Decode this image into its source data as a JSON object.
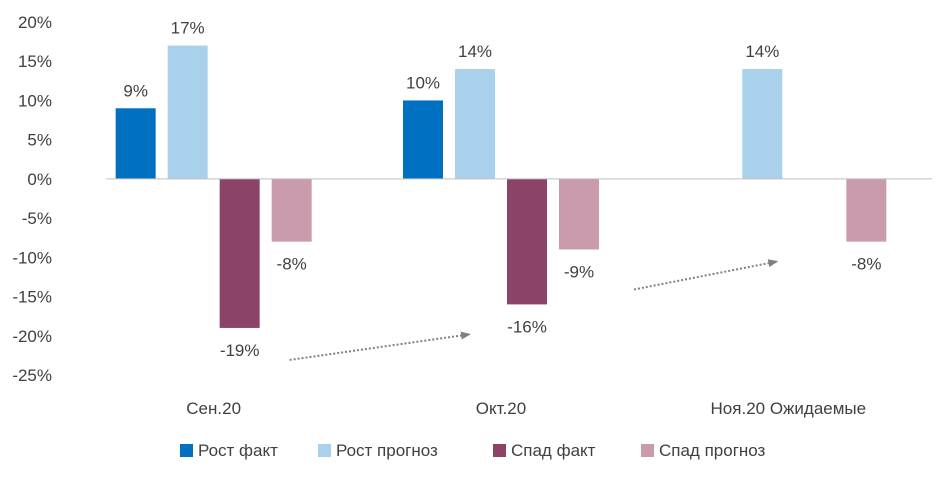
{
  "chart_data": {
    "type": "bar",
    "categories": [
      "Сен.20",
      "Окт.20",
      "Ноя.20 Ожидаемые"
    ],
    "series": [
      {
        "name": "Рост факт",
        "color": "#0070C0",
        "values": [
          9,
          10,
          null
        ],
        "labels": [
          "9%",
          "10%",
          ""
        ]
      },
      {
        "name": "Рост прогноз",
        "color": "#A9D1EC",
        "values": [
          17,
          14,
          14
        ],
        "labels": [
          "17%",
          "14%",
          "14%"
        ]
      },
      {
        "name": "Спад факт",
        "color": "#8B4368",
        "values": [
          -19,
          -16,
          null
        ],
        "labels": [
          "-19%",
          "-16%",
          ""
        ]
      },
      {
        "name": "Спад прогноз",
        "color": "#C99BAC",
        "values": [
          -8,
          -9,
          -8
        ],
        "labels": [
          "-8%",
          "-9%",
          "-8%"
        ]
      }
    ],
    "ylim": [
      -25,
      20
    ],
    "yticks": [
      "20%",
      "15%",
      "10%",
      "5%",
      "0%",
      "-5%",
      "-10%",
      "-15%",
      "-20%",
      "-25%"
    ],
    "legend_position": "bottom",
    "grid": false,
    "annotations": [
      "dotted trend arrow from Сен.20 «Спад факт» to Окт.20 «Спад факт»",
      "dotted trend arrow from Окт.20 «Спад прогноз» to Ноя.20 «Спад прогноз»"
    ]
  }
}
